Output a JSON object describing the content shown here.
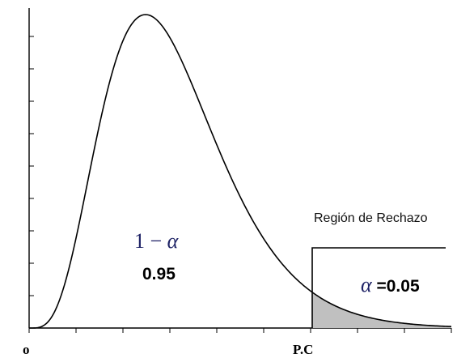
{
  "chart_data": {
    "type": "area",
    "title": "",
    "xlabel": "",
    "ylabel": "",
    "x_tick_labels": [
      "o",
      "P.C"
    ],
    "critical_point_label": "P.C",
    "region_label": "Región de Rechazo",
    "acceptance": {
      "symbol_prefix": "1 − ",
      "symbol_alpha": "α",
      "value": "0.95"
    },
    "rejection": {
      "symbol_alpha": "α",
      "value": " =0.05"
    },
    "alpha": 0.05,
    "distribution": "right-skewed density",
    "shaded_region": "right tail beyond P.C",
    "grid": false,
    "legend": "none",
    "colors": {
      "curve": "#000000",
      "shade": "#c0c0c0",
      "math_text": "#1f2366"
    }
  }
}
